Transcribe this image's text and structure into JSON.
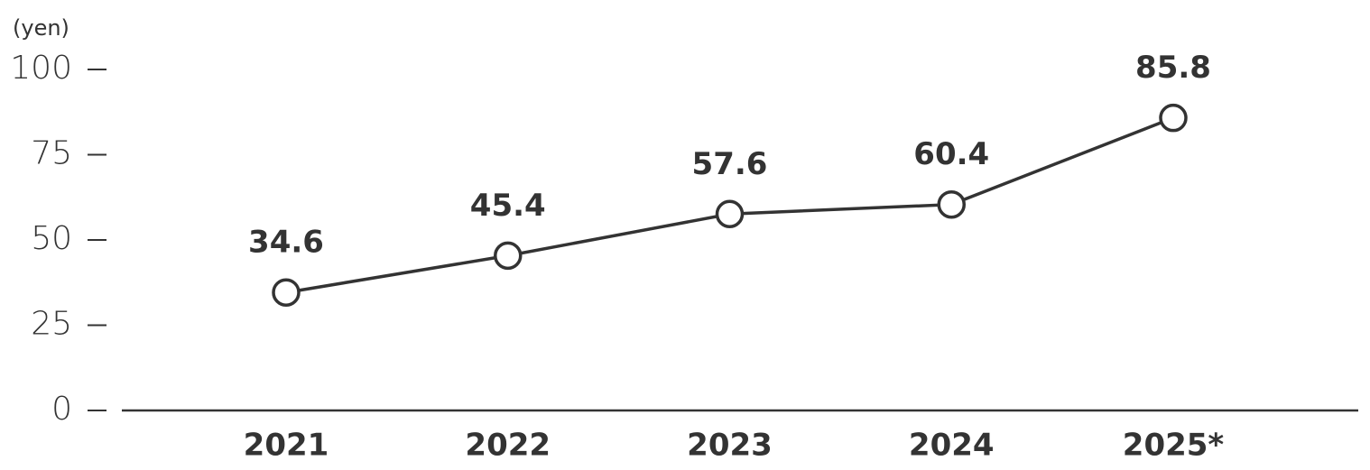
{
  "chart_data": {
    "type": "line",
    "y_label": "(yen)",
    "categories": [
      "2021",
      "2022",
      "2023",
      "2024",
      "2025*"
    ],
    "values": [
      34.6,
      45.4,
      57.6,
      60.4,
      85.8
    ],
    "color": "#333333",
    "ylim": [
      0,
      100
    ],
    "yticks": [
      0,
      25,
      50,
      75,
      100
    ]
  }
}
